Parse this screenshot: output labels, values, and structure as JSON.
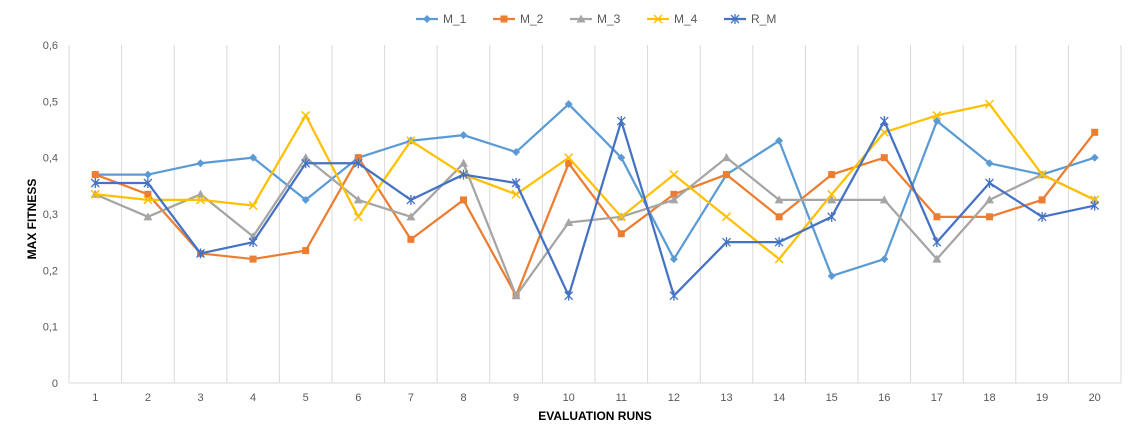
{
  "chart_data": {
    "type": "line",
    "title": "",
    "xlabel": "EVALUATION RUNS",
    "ylabel": "MAX FITNESS",
    "categories": [
      "1",
      "2",
      "3",
      "4",
      "5",
      "6",
      "7",
      "8",
      "9",
      "10",
      "11",
      "12",
      "13",
      "14",
      "15",
      "16",
      "17",
      "18",
      "19",
      "20"
    ],
    "ylim": [
      0,
      0.6
    ],
    "yticks": [
      "0",
      "0,1",
      "0,2",
      "0,3",
      "0,4",
      "0,5",
      "0,6"
    ],
    "ytick_values": [
      0,
      0.1,
      0.2,
      0.3,
      0.4,
      0.5,
      0.6
    ],
    "grid": "vertical",
    "legend_position": "top",
    "series": [
      {
        "name": "M_1",
        "color": "#5B9BD5",
        "marker": "diamond",
        "values": [
          0.37,
          0.37,
          0.39,
          0.4,
          0.325,
          0.4,
          0.43,
          0.44,
          0.41,
          0.495,
          0.4,
          0.22,
          0.37,
          0.43,
          0.19,
          0.22,
          0.465,
          0.39,
          0.37,
          0.4
        ]
      },
      {
        "name": "M_2",
        "color": "#ED7D31",
        "marker": "square",
        "values": [
          0.37,
          0.335,
          0.23,
          0.22,
          0.235,
          0.4,
          0.255,
          0.325,
          0.155,
          0.39,
          0.265,
          0.335,
          0.37,
          0.295,
          0.37,
          0.4,
          0.295,
          0.295,
          0.325,
          0.445
        ]
      },
      {
        "name": "M_3",
        "color": "#A5A5A5",
        "marker": "triangle",
        "values": [
          0.335,
          0.295,
          0.335,
          0.26,
          0.4,
          0.325,
          0.295,
          0.39,
          0.155,
          0.285,
          0.295,
          0.325,
          0.4,
          0.325,
          0.325,
          0.325,
          0.22,
          0.325,
          0.37,
          0.325
        ]
      },
      {
        "name": "M_4",
        "color": "#FFC000",
        "marker": "x",
        "values": [
          0.335,
          0.325,
          0.325,
          0.315,
          0.475,
          0.295,
          0.43,
          0.37,
          0.335,
          0.4,
          0.295,
          0.37,
          0.295,
          0.22,
          0.335,
          0.445,
          0.475,
          0.495,
          0.37,
          0.325
        ]
      },
      {
        "name": "R_M",
        "color": "#4472C4",
        "marker": "star",
        "values": [
          0.355,
          0.355,
          0.23,
          0.25,
          0.39,
          0.39,
          0.325,
          0.37,
          0.355,
          0.155,
          0.465,
          0.155,
          0.25,
          0.25,
          0.295,
          0.465,
          0.25,
          0.355,
          0.295,
          0.315
        ]
      }
    ]
  }
}
